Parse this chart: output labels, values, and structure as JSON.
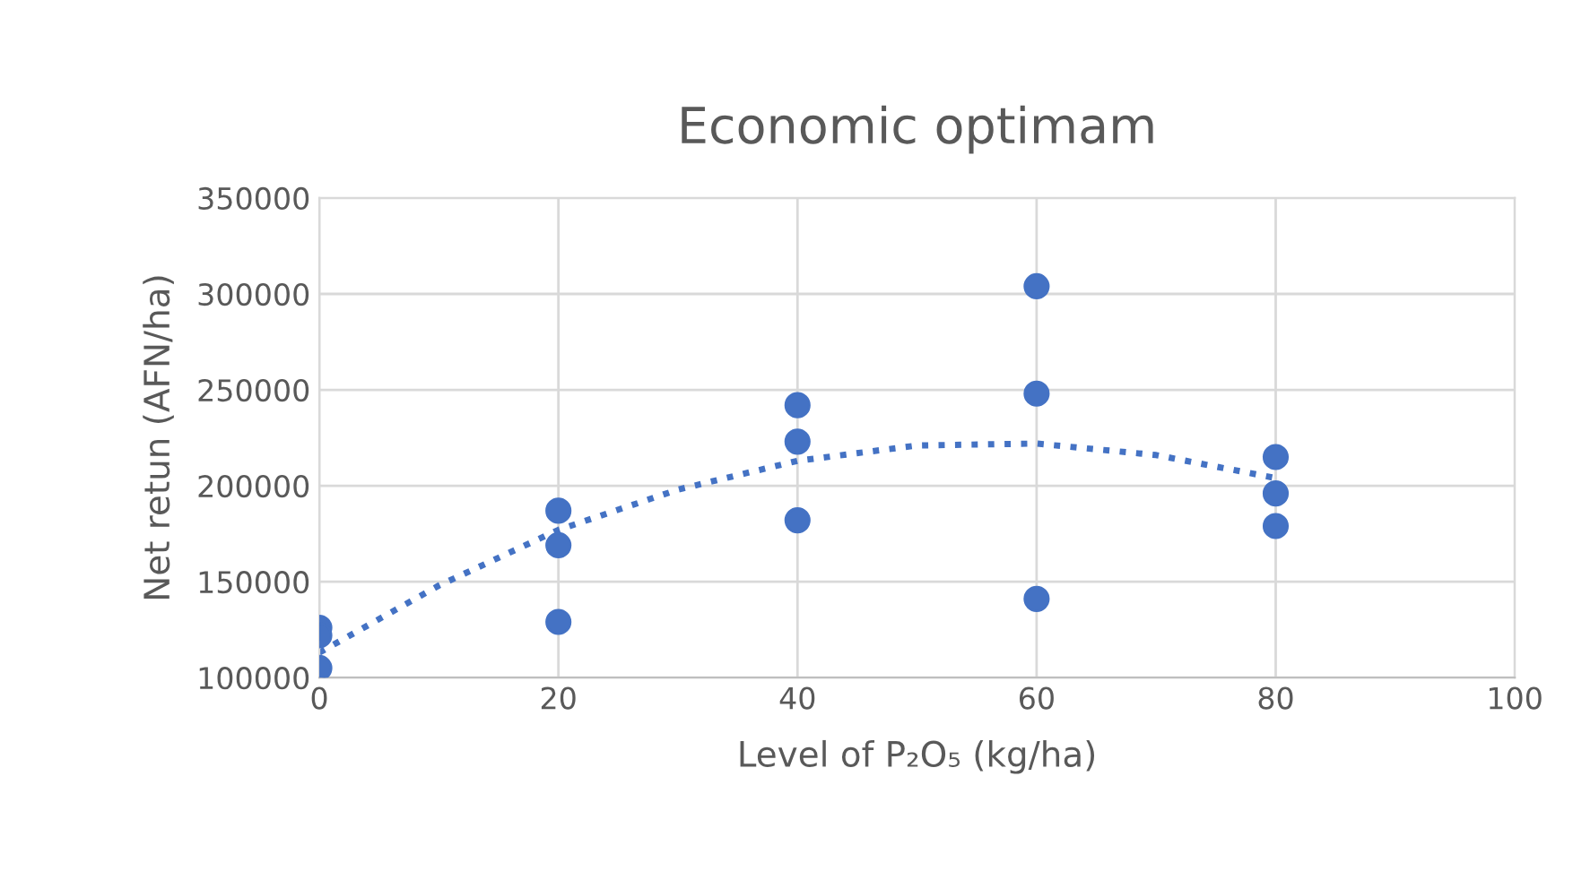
{
  "chart_data": {
    "type": "scatter",
    "title": "Economic optimam",
    "xlabel": "Level of P₂O₅ (kg/ha)",
    "ylabel": "Net retun (AFN/ha)",
    "x": [
      0,
      0,
      0,
      20,
      20,
      20,
      40,
      40,
      40,
      60,
      60,
      60,
      80,
      80,
      80
    ],
    "series": [
      {
        "color": "#4472c4",
        "marker": "circle",
        "values": [
          126000,
          122000,
          105000,
          187000,
          169000,
          129000,
          242000,
          223000,
          182000,
          304000,
          248000,
          141000,
          215000,
          196000,
          179000
        ]
      },
      {
        "type": "line",
        "color": "#4472c4",
        "line_style": "dotted",
        "x": [
          0,
          10,
          20,
          30,
          40,
          50,
          60,
          70,
          80
        ],
        "values": [
          113000,
          148000,
          177000,
          198000,
          213000,
          221000,
          222000,
          216000,
          204000
        ]
      }
    ],
    "xlim": [
      0,
      100
    ],
    "xticks": [
      0,
      20,
      40,
      60,
      80,
      100
    ],
    "ylim": [
      100000,
      350000
    ],
    "yticks": [
      100000,
      150000,
      200000,
      250000,
      300000,
      350000
    ],
    "grid": true
  }
}
